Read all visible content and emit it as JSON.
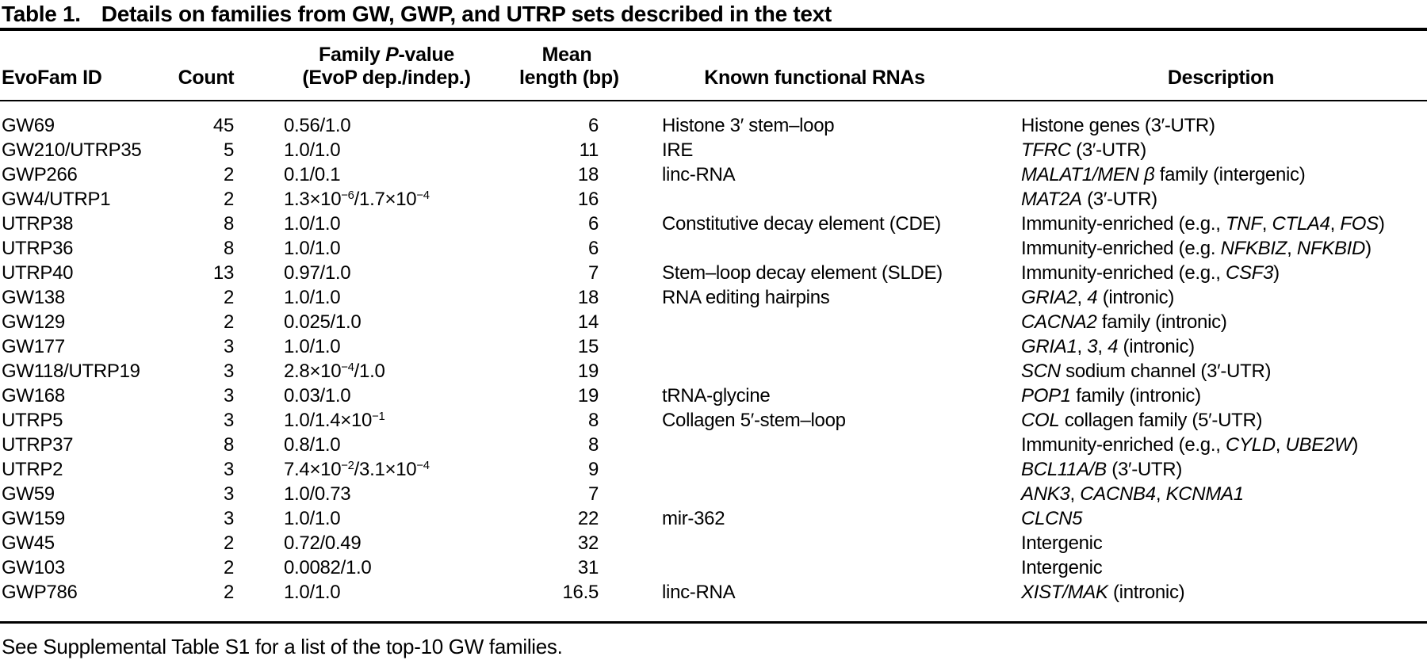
{
  "caption": {
    "label": "Table 1.",
    "text": "Details on families from GW, GWP, and UTRP sets described in the text"
  },
  "table": {
    "columns": [
      {
        "key": "evofam_id",
        "label_html": "EvoFam ID"
      },
      {
        "key": "count",
        "label_html": "Count"
      },
      {
        "key": "family_p_value",
        "label_html": "Family <i>P</i>-value<br>(EvoP dep./indep.)"
      },
      {
        "key": "mean_length",
        "label_html": "Mean<br>length (bp)"
      },
      {
        "key": "known_functional_rnas",
        "label_html": "Known functional RNAs"
      },
      {
        "key": "description",
        "label_html": "Description"
      }
    ],
    "rows": [
      [
        "GW69",
        "45",
        "0.56/1.0",
        "6",
        "Histone 3′ stem–loop",
        "Histone genes (3′-UTR)"
      ],
      [
        "GW210/UTRP35",
        "5",
        "1.0/1.0",
        "11",
        "IRE",
        "<i>TFRC</i> (3′-UTR)"
      ],
      [
        "GWP266",
        "2",
        "0.1/0.1",
        "18",
        "linc-RNA",
        "<i>MALAT1/MEN β</i> family (intergenic)"
      ],
      [
        "GW4/UTRP1",
        "2",
        "1.3×10<sup>−6</sup>/1.7×10<sup>−4</sup>",
        "16",
        "",
        "<i>MAT2A</i> (3′-UTR)"
      ],
      [
        "UTRP38",
        "8",
        "1.0/1.0",
        "6",
        "Constitutive decay element (CDE)",
        "Immunity-enriched (e.g., <i>TNF</i>, <i>CTLA4</i>, <i>FOS</i>)"
      ],
      [
        "UTRP36",
        "8",
        "1.0/1.0",
        "6",
        "",
        "Immunity-enriched (e.g. <i>NFKBIZ</i>, <i>NFKBID</i>)"
      ],
      [
        "UTRP40",
        "13",
        "0.97/1.0",
        "7",
        "Stem–loop decay element (SLDE)",
        "Immunity-enriched (e.g., <i>CSF3</i>)"
      ],
      [
        "GW138",
        "2",
        "1.0/1.0",
        "18",
        "RNA editing hairpins",
        "<i>GRIA2</i>, <i>4</i> (intronic)"
      ],
      [
        "GW129",
        "2",
        "0.025/1.0",
        "14",
        "",
        "<i>CACNA2</i> family (intronic)"
      ],
      [
        "GW177",
        "3",
        "1.0/1.0",
        "15",
        "",
        "<i>GRIA1</i>, <i>3</i>, <i>4</i> (intronic)"
      ],
      [
        "GW118/UTRP19",
        "3",
        "2.8×10<sup>−4</sup>/1.0",
        "19",
        "",
        "<i>SCN</i> sodium channel (3′-UTR)"
      ],
      [
        "GW168",
        "3",
        "0.03/1.0",
        "19",
        "tRNA-glycine",
        "<i>POP1</i> family (intronic)"
      ],
      [
        "UTRP5",
        "3",
        "1.0/1.4×10<sup>−1</sup>",
        "8",
        "Collagen 5′-stem–loop",
        "<i>COL</i> collagen family (5′-UTR)"
      ],
      [
        "UTRP37",
        "8",
        "0.8/1.0",
        "8",
        "",
        "Immunity-enriched (e.g., <i>CYLD</i>, <i>UBE2W</i>)"
      ],
      [
        "UTRP2",
        "3",
        "7.4×10<sup>−2</sup>/3.1×10<sup>−4</sup>",
        "9",
        "",
        "<i>BCL11A/B</i> (3′-UTR)"
      ],
      [
        "GW59",
        "3",
        "1.0/0.73",
        "7",
        "",
        "<i>ANK3</i>, <i>CACNB4</i>, <i>KCNMA1</i>"
      ],
      [
        "GW159",
        "3",
        "1.0/1.0",
        "22",
        "mir-362",
        "<i>CLCN5</i>"
      ],
      [
        "GW45",
        "2",
        "0.72/0.49",
        "32",
        "",
        "Intergenic"
      ],
      [
        "GW103",
        "2",
        "0.0082/1.0",
        "31",
        "",
        "Intergenic"
      ],
      [
        "GWP786",
        "2",
        "1.0/1.0",
        "16.5",
        "linc-RNA",
        "<i>XIST/MAK</i> (intronic)"
      ]
    ]
  },
  "footnote": "See Supplemental Table S1 for a list of the top-10 GW families."
}
